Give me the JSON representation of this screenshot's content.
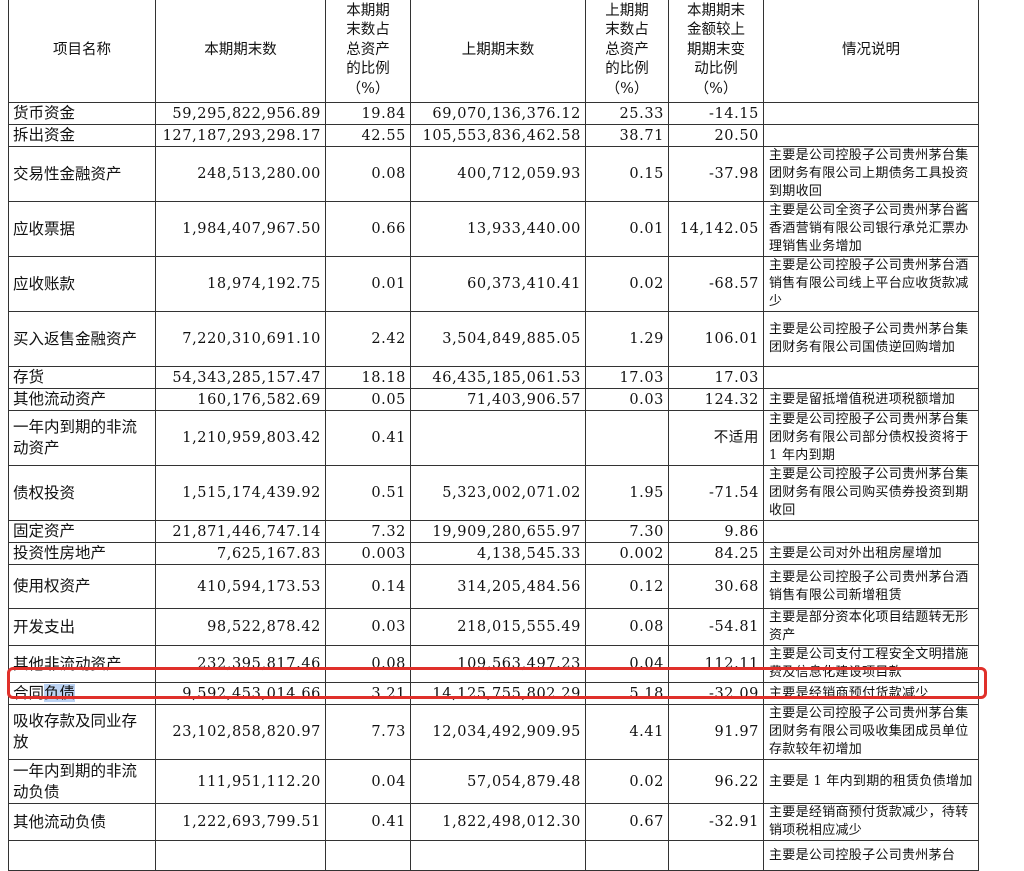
{
  "headers": [
    "项目名称",
    "本期期末数",
    "本期期末数占总资产的比例（%）",
    "上期期末数",
    "上期期末数占总资产的比例（%）",
    "本期期末金额较上期期末变动比例（%）",
    "情况说明"
  ],
  "header_lines": {
    "col3": [
      "本期期",
      "末数占",
      "总资产",
      "的比例",
      "（%）"
    ],
    "col5": [
      "上期期",
      "末数占",
      "总资产",
      "的比例",
      "（%）"
    ],
    "col6": [
      "本期期末",
      "金额较上",
      "期期末变",
      "动比例",
      "（%）"
    ]
  },
  "rows": [
    {
      "name": "货币资金",
      "current": "59,295,822,956.89",
      "current_pct": "19.84",
      "prior": "69,070,136,376.12",
      "prior_pct": "25.33",
      "change": "-14.15",
      "note": ""
    },
    {
      "name": "拆出资金",
      "current": "127,187,293,298.17",
      "current_pct": "42.55",
      "prior": "105,553,836,462.58",
      "prior_pct": "38.71",
      "change": "20.50",
      "note": ""
    },
    {
      "name": "交易性金融资产",
      "current": "248,513,280.00",
      "current_pct": "0.08",
      "prior": "400,712,059.93",
      "prior_pct": "0.15",
      "change": "-37.98",
      "note": "主要是公司控股子公司贵州茅台集团财务有限公司上期债务工具投资到期收回"
    },
    {
      "name": "应收票据",
      "current": "1,984,407,967.50",
      "current_pct": "0.66",
      "prior": "13,933,440.00",
      "prior_pct": "0.01",
      "change": "14,142.05",
      "note": "主要是公司全资子公司贵州茅台酱香酒营销有限公司银行承兑汇票办理销售业务增加"
    },
    {
      "name": "应收账款",
      "current": "18,974,192.75",
      "current_pct": "0.01",
      "prior": "60,373,410.41",
      "prior_pct": "0.02",
      "change": "-68.57",
      "note": "主要是公司控股子公司贵州茅台酒销售有限公司线上平台应收货款减少"
    },
    {
      "name": "买入返售金融资产",
      "current": "7,220,310,691.10",
      "current_pct": "2.42",
      "prior": "3,504,849,885.05",
      "prior_pct": "1.29",
      "change": "106.01",
      "note": "主要是公司控股子公司贵州茅台集团财务有限公司国债逆回购增加"
    },
    {
      "name": "存货",
      "current": "54,343,285,157.47",
      "current_pct": "18.18",
      "prior": "46,435,185,061.53",
      "prior_pct": "17.03",
      "change": "17.03",
      "note": ""
    },
    {
      "name": "其他流动资产",
      "current": "160,176,582.69",
      "current_pct": "0.05",
      "prior": "71,403,906.57",
      "prior_pct": "0.03",
      "change": "124.32",
      "note": "主要是留抵增值税进项税额增加"
    },
    {
      "name": "一年内到期的非流动资产",
      "current": "1,210,959,803.42",
      "current_pct": "0.41",
      "prior": "",
      "prior_pct": "",
      "change": "不适用",
      "note": "主要是公司控股子公司贵州茅台集团财务有限公司部分债权投资将于 1 年内到期"
    },
    {
      "name": "债权投资",
      "current": "1,515,174,439.92",
      "current_pct": "0.51",
      "prior": "5,323,002,071.02",
      "prior_pct": "1.95",
      "change": "-71.54",
      "note": "主要是公司控股子公司贵州茅台集团财务有限公司购买债券投资到期收回"
    },
    {
      "name": "固定资产",
      "current": "21,871,446,747.14",
      "current_pct": "7.32",
      "prior": "19,909,280,655.97",
      "prior_pct": "7.30",
      "change": "9.86",
      "note": ""
    },
    {
      "name": "投资性房地产",
      "current": "7,625,167.83",
      "current_pct": "0.003",
      "prior": "4,138,545.33",
      "prior_pct": "0.002",
      "change": "84.25",
      "note": "主要是公司对外出租房屋增加"
    },
    {
      "name": "使用权资产",
      "current": "410,594,173.53",
      "current_pct": "0.14",
      "prior": "314,205,484.56",
      "prior_pct": "0.12",
      "change": "30.68",
      "note": "主要是公司控股子公司贵州茅台酒销售有限公司新增租赁"
    },
    {
      "name": "开发支出",
      "current": "98,522,878.42",
      "current_pct": "0.03",
      "prior": "218,015,555.49",
      "prior_pct": "0.08",
      "change": "-54.81",
      "note": "主要是部分资本化项目结题转无形资产"
    },
    {
      "name": "其他非流动资产",
      "current": "232,395,817.46",
      "current_pct": "0.08",
      "prior": "109,563,497.23",
      "prior_pct": "0.04",
      "change": "112.11",
      "note": "主要是公司支付工程安全文明措施费及信息化建设项目款"
    },
    {
      "name": "合同负债",
      "name_plain": "合同",
      "name_highlight": "负债",
      "current": "9,592,453,014.66",
      "current_pct": "3.21",
      "prior": "14,125,755,802.29",
      "prior_pct": "5.18",
      "change": "-32.09",
      "note": "主要是经销商预付货款减少",
      "highlighted": true
    },
    {
      "name": "吸收存款及同业存放",
      "current": "23,102,858,820.97",
      "current_pct": "7.73",
      "prior": "12,034,492,909.95",
      "prior_pct": "4.41",
      "change": "91.97",
      "note": "主要是公司控股子公司贵州茅台集团财务有限公司吸收集团成员单位存款较年初增加"
    },
    {
      "name": "一年内到期的非流动负债",
      "current": "111,951,112.20",
      "current_pct": "0.04",
      "prior": "57,054,879.48",
      "prior_pct": "0.02",
      "change": "96.22",
      "note": "主要是 1 年内到期的租赁负债增加"
    },
    {
      "name": "其他流动负债",
      "current": "1,222,693,799.51",
      "current_pct": "0.41",
      "prior": "1,822,498,012.30",
      "prior_pct": "0.67",
      "change": "-32.91",
      "note": "主要是经销商预付货款减少，待转销项税相应减少"
    },
    {
      "name": "",
      "current": "",
      "current_pct": "",
      "prior": "",
      "prior_pct": "",
      "change": "",
      "note": "主要是公司控股子公司贵州茅台"
    }
  ],
  "colors": {
    "highlight_box": "#e0302a",
    "text_selection": "#bcd3f3"
  }
}
